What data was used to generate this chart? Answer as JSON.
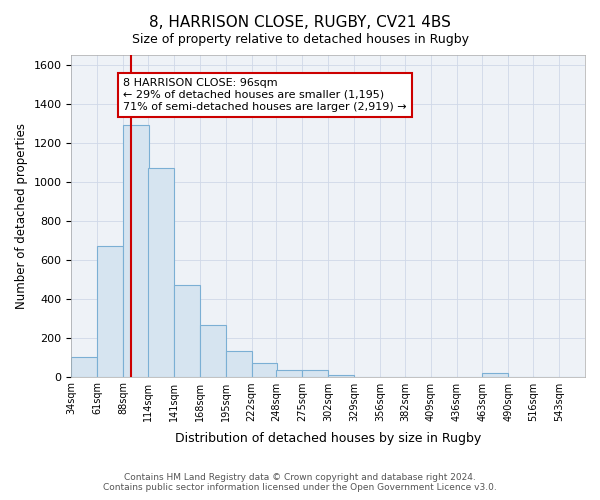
{
  "title1": "8, HARRISON CLOSE, RUGBY, CV21 4BS",
  "title2": "Size of property relative to detached houses in Rugby",
  "xlabel": "Distribution of detached houses by size in Rugby",
  "ylabel": "Number of detached properties",
  "footer1": "Contains HM Land Registry data © Crown copyright and database right 2024.",
  "footer2": "Contains public sector information licensed under the Open Government Licence v3.0.",
  "bar_edges": [
    34,
    61,
    88,
    114,
    141,
    168,
    195,
    222,
    248,
    275,
    302,
    329,
    356,
    382,
    409,
    436,
    463,
    490,
    516,
    543,
    570
  ],
  "bar_heights": [
    100,
    670,
    1290,
    1070,
    470,
    265,
    130,
    70,
    35,
    35,
    10,
    0,
    0,
    0,
    0,
    0,
    20,
    0,
    0,
    0
  ],
  "bar_color": "#d6e4f0",
  "bar_edgecolor": "#7bafd4",
  "property_size": 96,
  "vline_color": "#cc0000",
  "annotation_line1": "8 HARRISON CLOSE: 96sqm",
  "annotation_line2": "← 29% of detached houses are smaller (1,195)",
  "annotation_line3": "71% of semi-detached houses are larger (2,919) →",
  "annotation_box_edgecolor": "#cc0000",
  "ylim": [
    0,
    1650
  ],
  "background_color": "#eef2f7",
  "grid_color": "#d0d8e8",
  "fig_facecolor": "#ffffff"
}
